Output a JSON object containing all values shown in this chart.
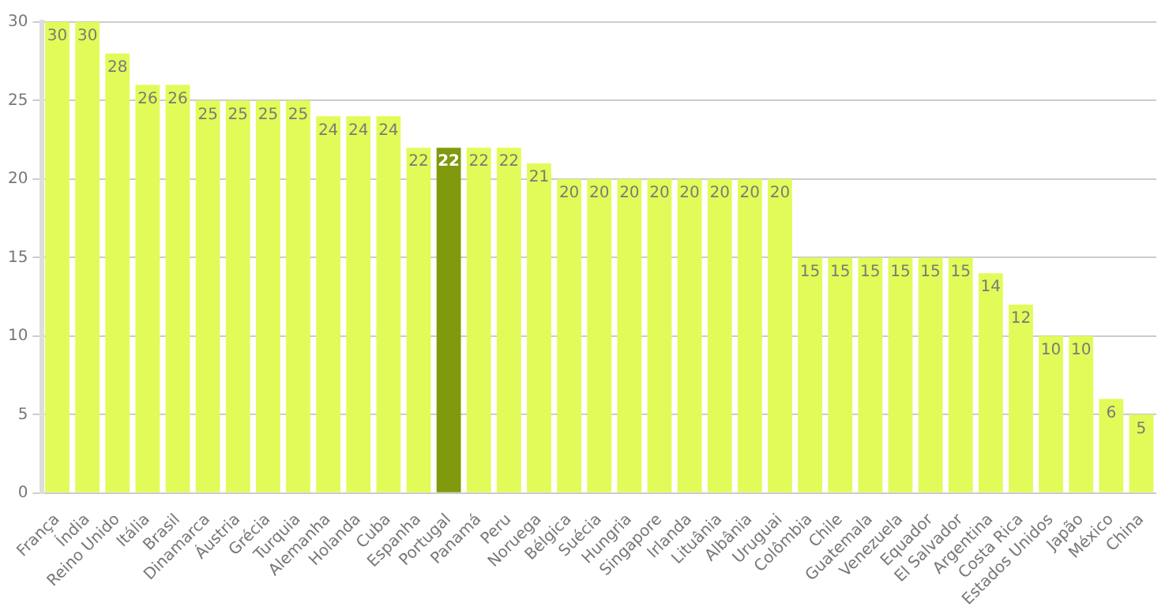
{
  "chart_data": {
    "type": "bar",
    "categories": [
      "França",
      "Índia",
      "Reino Unido",
      "Itália",
      "Brasil",
      "Dinamarca",
      "Áustria",
      "Grécia",
      "Turquia",
      "Alemanha",
      "Holanda",
      "Cuba",
      "Espanha",
      "Portugal",
      "Panamá",
      "Peru",
      "Noruega",
      "Bélgica",
      "Suécia",
      "Hungria",
      "Singapore",
      "Irlanda",
      "Lituânia",
      "Albânia",
      "Uruguai",
      "Colômbia",
      "Chile",
      "Guatemala",
      "Venezuela",
      "Equador",
      "El Salvador",
      "Argentina",
      "Costa Rica",
      "Estados Unidos",
      "Japão",
      "México",
      "China"
    ],
    "values": [
      30,
      30,
      28,
      26,
      26,
      25,
      25,
      25,
      25,
      24,
      24,
      24,
      22,
      22,
      22,
      22,
      21,
      20,
      20,
      20,
      20,
      20,
      20,
      20,
      20,
      15,
      15,
      15,
      15,
      15,
      15,
      14,
      12,
      10,
      10,
      6,
      5
    ],
    "colors": [
      "#e2fb58",
      "#e2fb58",
      "#e2fb58",
      "#e2fb58",
      "#e2fb58",
      "#e2fb58",
      "#e2fb58",
      "#e2fb58",
      "#e2fb58",
      "#e2fb58",
      "#e2fb58",
      "#e2fb58",
      "#e2fb58",
      "#7f9a0c",
      "#e2fb58",
      "#e2fb58",
      "#e2fb58",
      "#e2fb58",
      "#e2fb58",
      "#e2fb58",
      "#e2fb58",
      "#e2fb58",
      "#e2fb58",
      "#e2fb58",
      "#e2fb58",
      "#e2fb58",
      "#e2fb58",
      "#e2fb58",
      "#e2fb58",
      "#e2fb58",
      "#e2fb58",
      "#e2fb58",
      "#e2fb58",
      "#e2fb58",
      "#e2fb58",
      "#e2fb58",
      "#e2fb58"
    ],
    "ylim": [
      0,
      30
    ],
    "yticks": [
      0,
      5,
      10,
      15,
      20,
      25,
      30
    ],
    "grid": "y",
    "data_labels": true,
    "legend": false
  }
}
